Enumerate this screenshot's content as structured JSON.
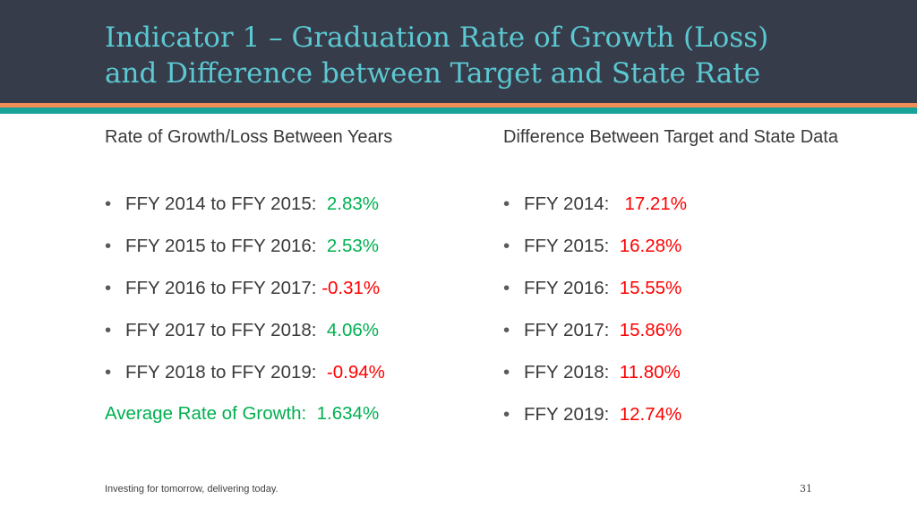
{
  "slide": {
    "title_line1": "Indicator 1 – Graduation Rate of Growth (Loss)",
    "title_line2": "and Difference between Target and State Rate"
  },
  "left": {
    "heading": "Rate of Growth/Loss Between Years",
    "items": [
      {
        "label": "FFY 2014 to FFY 2015:",
        "value": "2.83%",
        "status": "green"
      },
      {
        "label": "FFY 2015 to FFY 2016:",
        "value": "2.53%",
        "status": "green"
      },
      {
        "label": "FFY 2016 to FFY 2017:",
        "value": "-0.31%",
        "status": "red"
      },
      {
        "label": "FFY 2017 to FFY 2018:",
        "value": "4.06%",
        "status": "green"
      },
      {
        "label": "FFY 2018 to FFY 2019:",
        "value": "-0.94%",
        "status": "red"
      }
    ],
    "average_label": "Average Rate of Growth:",
    "average_value": "1.634%"
  },
  "right": {
    "heading": "Difference Between Target and State Data",
    "items": [
      {
        "label": "FFY 2014:",
        "value": "17.21%",
        "status": "red"
      },
      {
        "label": "FFY 2015:",
        "value": "16.28%",
        "status": "red"
      },
      {
        "label": "FFY 2016:",
        "value": "15.55%",
        "status": "red"
      },
      {
        "label": "FFY 2017:",
        "value": "15.86%",
        "status": "red"
      },
      {
        "label": "FFY 2018:",
        "value": "11.80%",
        "status": "red"
      },
      {
        "label": "FFY 2019:",
        "value": "12.74%",
        "status": "red"
      }
    ]
  },
  "footer": {
    "tagline": "Investing for tomorrow, delivering today.",
    "page_number": "31"
  },
  "colors": {
    "header_bg": "#373c4a",
    "title": "#5bc8d2",
    "stripe_orange": "#f08c56",
    "stripe_teal": "#17a29a",
    "positive": "#00b050",
    "negative": "#ff0000"
  }
}
